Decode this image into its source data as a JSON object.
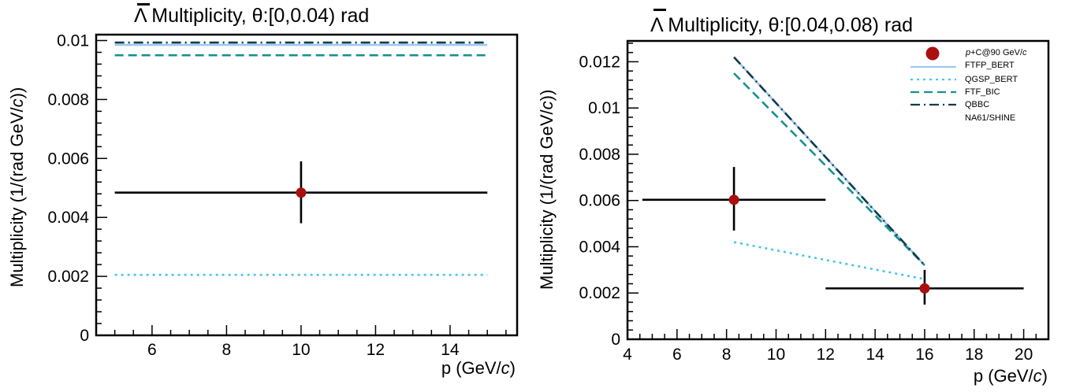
{
  "chart_data": [
    {
      "type": "scatter",
      "title_bar": "Λ",
      "title_rest": " Multiplicity, θ:[0,0.04) rad",
      "xlabel": "p (GeV/",
      "xlabel_unit": "c",
      "xlabel_end": ")",
      "ylabel": "Multiplicity (1/(rad GeV/",
      "ylabel_unit": "c",
      "ylabel_end": "))",
      "xlim": [
        4.5,
        15.8
      ],
      "ylim": [
        0,
        0.0102
      ],
      "xticks": [
        6,
        8,
        10,
        12,
        14
      ],
      "xtick_labels": [
        "6",
        "8",
        "10",
        "12",
        "14"
      ],
      "xminor": 0.5,
      "yticks": [
        0,
        0.002,
        0.004,
        0.006,
        0.008,
        0.01
      ],
      "ytick_labels": [
        "0",
        "0.002",
        "0.004",
        "0.006",
        "0.008",
        "0.01"
      ],
      "yminor": 0.0004,
      "series": [
        {
          "key": "ftfp",
          "x": [
            5,
            15
          ],
          "y": [
            0.00985,
            0.00985
          ]
        },
        {
          "key": "qgsp",
          "x": [
            5,
            15
          ],
          "y": [
            0.00205,
            0.00205
          ]
        },
        {
          "key": "ftfbic",
          "x": [
            5,
            15
          ],
          "y": [
            0.0095,
            0.0095
          ]
        },
        {
          "key": "qbbc",
          "x": [
            5,
            15
          ],
          "y": [
            0.00993,
            0.00993
          ]
        }
      ],
      "data_points": [
        {
          "x": 10,
          "y": 0.00484,
          "xerr": [
            5,
            15
          ],
          "yerr": [
            0.0038,
            0.0059
          ]
        }
      ]
    },
    {
      "type": "scatter",
      "title_bar": "Λ",
      "title_rest": " Multiplicity, θ:[0.04,0.08) rad",
      "xlabel": "p (GeV/",
      "xlabel_unit": "c",
      "xlabel_end": ")",
      "ylabel": "Multiplicity (1/(rad GeV/",
      "ylabel_unit": "c",
      "ylabel_end": "))",
      "xlim": [
        4,
        21
      ],
      "ylim": [
        0,
        0.0129
      ],
      "xticks": [
        4,
        6,
        8,
        10,
        12,
        14,
        16,
        18,
        20
      ],
      "xtick_labels": [
        "4",
        "6",
        "8",
        "10",
        "12",
        "14",
        "16",
        "18",
        "20"
      ],
      "xminor": 0.5,
      "yticks": [
        0,
        0.002,
        0.004,
        0.006,
        0.008,
        0.01,
        0.012
      ],
      "ytick_labels": [
        "0",
        "0.002",
        "0.004",
        "0.006",
        "0.008",
        "0.01",
        "0.012"
      ],
      "yminor": 0.0004,
      "series": [
        {
          "key": "ftfp",
          "x": [
            8.3,
            16
          ],
          "y": [
            0.0122,
            0.0032
          ]
        },
        {
          "key": "qgsp",
          "x": [
            8.3,
            16
          ],
          "y": [
            0.0042,
            0.0026
          ]
        },
        {
          "key": "ftfbic",
          "x": [
            8.3,
            16
          ],
          "y": [
            0.0115,
            0.0032
          ]
        },
        {
          "key": "qbbc",
          "x": [
            8.3,
            16
          ],
          "y": [
            0.0122,
            0.0032
          ]
        }
      ],
      "data_points": [
        {
          "x": 8.3,
          "y": 0.00603,
          "xerr": [
            4.6,
            12
          ],
          "yerr": [
            0.0047,
            0.00745
          ]
        },
        {
          "x": 16,
          "y": 0.0022,
          "xerr": [
            12,
            20
          ],
          "yerr": [
            0.0015,
            0.003
          ]
        }
      ],
      "legend": {
        "placement": "top-right",
        "header_italic": "p",
        "header_rest": "+C@90 GeV/",
        "header_unit": "c",
        "entries": [
          {
            "key": "ftfp",
            "label": "FTFP_BERT"
          },
          {
            "key": "qgsp",
            "label": "QGSP_BERT"
          },
          {
            "key": "ftfbic",
            "label": "FTF_BIC"
          },
          {
            "key": "qbbc",
            "label": "QBBC"
          },
          {
            "key": "data",
            "label": "NA61/SHINE"
          }
        ]
      }
    }
  ],
  "styles": {
    "ftfp": {
      "color": "#9ec9ef",
      "dash": ""
    },
    "qgsp": {
      "color": "#45c6ec",
      "dash": "3,5"
    },
    "ftfbic": {
      "color": "#15918c",
      "dash": "11,6"
    },
    "qbbc": {
      "color": "#103c4a",
      "dash": "12,5,2,5"
    },
    "data": {
      "color": "#a90f0f"
    }
  }
}
